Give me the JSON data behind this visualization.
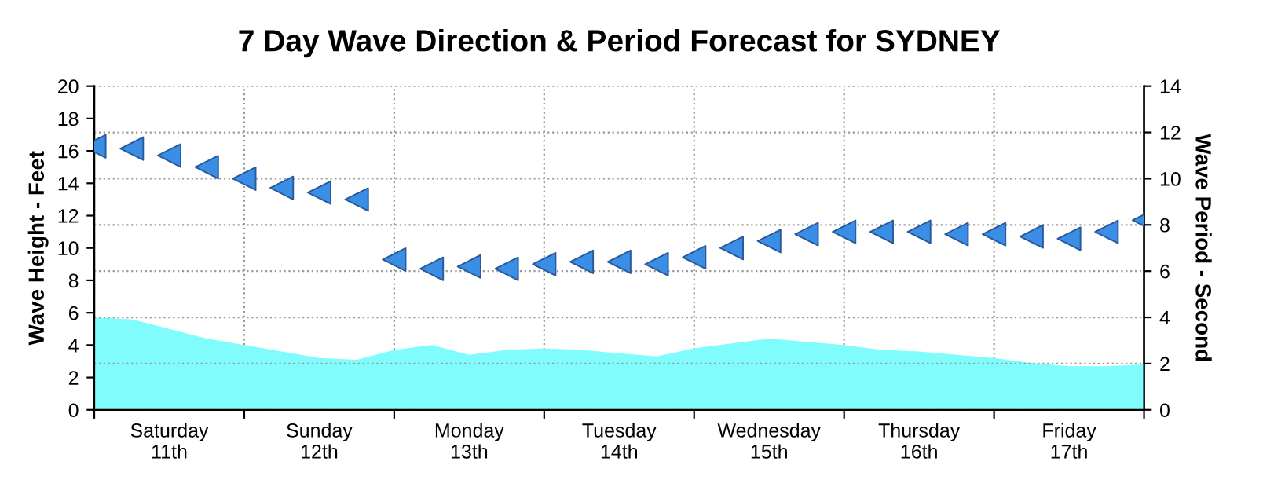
{
  "chart_data": {
    "type": "area",
    "title": "7 Day Wave Direction & Period Forecast for SYDNEY",
    "ylabel": "Wave Height - Feet",
    "y2label": "Wave Period - Second",
    "categories": [
      null,
      null,
      "Saturday\n11th",
      null,
      null,
      null,
      "Sunday\n12th",
      null,
      null,
      null,
      "Monday\n13th",
      null,
      null,
      null,
      "Tuesday\n14th",
      null,
      null,
      null,
      "Wednesday\n15th",
      null,
      null,
      null,
      "Thursday\n16th",
      null,
      null,
      null,
      "Friday\n17th",
      null,
      null
    ],
    "ylim": [
      0,
      20
    ],
    "yticks": [
      0,
      2,
      4,
      6,
      8,
      10,
      12,
      14,
      16,
      18,
      20
    ],
    "y2lim": [
      0,
      14
    ],
    "y2ticks": [
      0,
      2,
      4,
      6,
      8,
      10,
      12,
      14
    ],
    "grid": true,
    "series": [
      {
        "color": "#80fcfc",
        "values": [
          5.7,
          5.6,
          5.0,
          4.4,
          4.0,
          3.6,
          3.2,
          3.1,
          3.7,
          4.0,
          3.4,
          3.7,
          3.8,
          3.7,
          3.5,
          3.3,
          3.8,
          4.1,
          4.4,
          4.2,
          4.0,
          3.7,
          3.6,
          3.4,
          3.2,
          2.9,
          2.7,
          2.7,
          2.8
        ]
      },
      {
        "type": "scatter",
        "axis": "y2",
        "marker": "triangle",
        "color": "#3a8ee6",
        "values": [
          11.4,
          11.3,
          11.0,
          10.5,
          10.0,
          9.6,
          9.4,
          9.1,
          6.5,
          6.1,
          6.2,
          6.1,
          6.3,
          6.4,
          6.4,
          6.3,
          6.6,
          7.0,
          7.3,
          7.6,
          7.7,
          7.7,
          7.7,
          7.6,
          7.6,
          7.5,
          7.4,
          7.7,
          8.2
        ]
      }
    ]
  }
}
